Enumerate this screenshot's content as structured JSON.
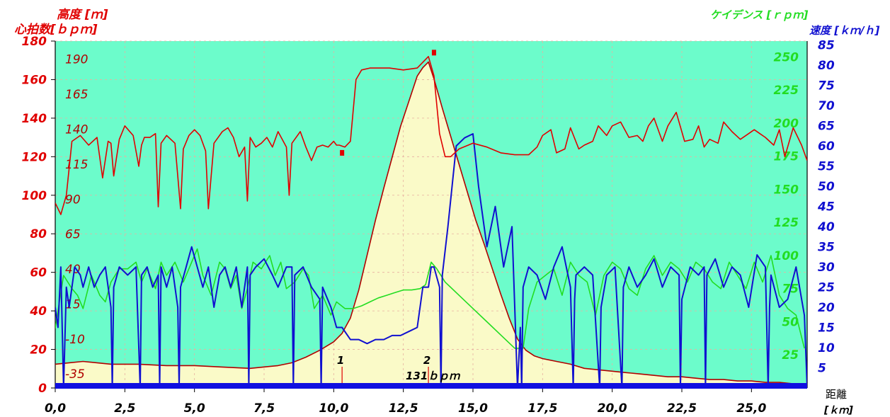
{
  "chart_data": {
    "type": "line",
    "axes": {
      "heart_rate": {
        "title": "心拍数[ｂｐｍ]",
        "color": "#e00000",
        "ticks": [
          "0",
          "20",
          "40",
          "60",
          "80",
          "100",
          "120",
          "140",
          "160",
          "180"
        ],
        "range": [
          0,
          180
        ]
      },
      "altitude": {
        "title": "高度 [ｍ]",
        "color": "#b00000",
        "ticks": [
          "-35",
          "-10",
          "15",
          "40",
          "65",
          "90",
          "115",
          "140",
          "165",
          "190"
        ],
        "range": [
          -45,
          203
        ]
      },
      "cadence": {
        "title": "ケイデンス [ｒｐｍ]",
        "color": "#22dd22",
        "ticks": [
          "25",
          "50",
          "75",
          "100",
          "125",
          "150",
          "175",
          "200",
          "225",
          "250"
        ],
        "range": [
          0,
          262
        ]
      },
      "speed": {
        "title": "速度 [ｋｍ/ｈ]",
        "color": "#1010d0",
        "ticks": [
          "5",
          "10",
          "15",
          "20",
          "25",
          "30",
          "35",
          "40",
          "45",
          "50",
          "55",
          "60",
          "65",
          "70",
          "75",
          "80",
          "85"
        ],
        "range": [
          0,
          86
        ]
      },
      "distance": {
        "title": "距離",
        "unit": "[ｋｍ]",
        "ticks": [
          "0,0",
          "2,5",
          "5,0",
          "7,5",
          "10,0",
          "12,5",
          "15,0",
          "17,5",
          "20,0",
          "22,5",
          "25,0"
        ],
        "range": [
          0,
          27
        ]
      }
    },
    "markers": [
      {
        "label": "1",
        "x": 10.3
      },
      {
        "label": "2",
        "x": 13.4
      }
    ],
    "annotation": "131ｂｐｍ",
    "series": [
      {
        "key": "heart_rate",
        "color": "#e00000",
        "x": [
          0,
          0.2,
          0.4,
          0.6,
          0.9,
          1.2,
          1.5,
          1.7,
          1.9,
          2.0,
          2.1,
          2.3,
          2.5,
          2.8,
          3.0,
          3.1,
          3.2,
          3.4,
          3.6,
          3.7,
          3.8,
          4.0,
          4.3,
          4.5,
          4.6,
          4.8,
          5.0,
          5.2,
          5.4,
          5.5,
          5.7,
          6.0,
          6.2,
          6.4,
          6.6,
          6.8,
          6.9,
          7.0,
          7.2,
          7.4,
          7.6,
          7.8,
          8.0,
          8.3,
          8.4,
          8.5,
          8.8,
          9.0,
          9.2,
          9.4,
          9.6,
          9.8,
          10.0,
          10.1,
          10.2,
          10.4,
          10.6,
          10.8,
          11.0,
          11.3,
          11.6,
          12.0,
          12.5,
          13.0,
          13.4,
          13.6,
          13.8,
          14.0,
          14.2,
          14.5,
          15.0,
          15.5,
          16.0,
          16.5,
          17.0,
          17.3,
          17.5,
          17.8,
          18.0,
          18.3,
          18.5,
          18.8,
          19.0,
          19.3,
          19.5,
          19.8,
          20.0,
          20.3,
          20.6,
          20.9,
          21.1,
          21.3,
          21.5,
          21.8,
          22.0,
          22.3,
          22.6,
          22.9,
          23.1,
          23.3,
          23.5,
          23.8,
          24.0,
          24.3,
          24.6,
          24.9,
          25.1,
          25.3,
          25.5,
          25.8,
          26.0,
          26.2,
          26.5,
          26.8,
          27.0
        ],
        "y": [
          96,
          90,
          100,
          128,
          131,
          126,
          130,
          109,
          128,
          127,
          110,
          129,
          136,
          131,
          115,
          126,
          130,
          130,
          132,
          94,
          127,
          131,
          127,
          93,
          124,
          131,
          134,
          131,
          123,
          93,
          127,
          133,
          135,
          130,
          120,
          125,
          97,
          130,
          125,
          127,
          130,
          125,
          133,
          125,
          100,
          127,
          133,
          125,
          118,
          125,
          126,
          125,
          128,
          126,
          126,
          125,
          128,
          160,
          165,
          166,
          166,
          166,
          165,
          166,
          172,
          162,
          132,
          120,
          120,
          124,
          127,
          125,
          122,
          121,
          121,
          125,
          131,
          134,
          122,
          124,
          135,
          124,
          126,
          128,
          136,
          131,
          136,
          138,
          130,
          131,
          128,
          136,
          140,
          128,
          136,
          143,
          128,
          129,
          136,
          125,
          129,
          127,
          138,
          133,
          129,
          132,
          134,
          132,
          130,
          126,
          134,
          120,
          135,
          126,
          118
        ]
      },
      {
        "key": "altitude",
        "color": "#b00000",
        "x": [
          0,
          0.5,
          1.0,
          2.0,
          3.0,
          4.0,
          5.0,
          6.0,
          7.0,
          8.0,
          8.5,
          9.0,
          9.5,
          10.0,
          10.3,
          10.6,
          10.9,
          11.2,
          11.5,
          11.8,
          12.1,
          12.4,
          12.7,
          13.0,
          13.2,
          13.4,
          13.6,
          13.9,
          14.2,
          14.5,
          14.8,
          15.1,
          15.4,
          15.7,
          16.0,
          16.3,
          16.6,
          16.9,
          17.2,
          17.5,
          18.0,
          18.5,
          19.0,
          19.5,
          20.0,
          20.5,
          21.0,
          21.5,
          22.0,
          22.5,
          23.0,
          23.5,
          24.0,
          24.5,
          25.0,
          25.5,
          26.0,
          26.5,
          27.0
        ],
        "y": [
          -28,
          -27,
          -26,
          -28,
          -28,
          -29,
          -29,
          -30,
          -31,
          -29,
          -27,
          -23,
          -18,
          -12,
          -6,
          5,
          25,
          50,
          75,
          98,
          120,
          142,
          160,
          178,
          184,
          188,
          176,
          155,
          135,
          115,
          95,
          75,
          58,
          40,
          22,
          5,
          -10,
          -18,
          -22,
          -24,
          -26,
          -28,
          -31,
          -32,
          -33,
          -34,
          -35,
          -36,
          -37,
          -37,
          -38,
          -39,
          -39,
          -40,
          -40,
          -41,
          -41,
          -42,
          -42
        ]
      },
      {
        "key": "cadence",
        "color": "#22dd22",
        "x": [
          0,
          0.3,
          0.6,
          0.8,
          1.0,
          1.3,
          1.6,
          1.8,
          2.0,
          2.3,
          2.6,
          2.9,
          3.1,
          3.3,
          3.6,
          3.8,
          4.0,
          4.3,
          4.6,
          4.9,
          5.1,
          5.3,
          5.6,
          5.9,
          6.1,
          6.3,
          6.5,
          6.7,
          6.9,
          7.1,
          7.4,
          7.7,
          7.9,
          8.1,
          8.3,
          8.6,
          8.9,
          9.1,
          9.3,
          9.6,
          9.9,
          10.1,
          10.4,
          10.7,
          11.0,
          11.3,
          11.6,
          11.9,
          12.2,
          12.5,
          12.8,
          13.1,
          13.3,
          13.5,
          13.7,
          14.0,
          14.5,
          15.0,
          15.5,
          16.0,
          16.5,
          16.8,
          17.0,
          17.3,
          17.6,
          17.9,
          18.2,
          18.5,
          18.8,
          19.1,
          19.4,
          19.7,
          20.0,
          20.3,
          20.6,
          20.9,
          21.2,
          21.5,
          21.8,
          22.1,
          22.4,
          22.7,
          23.0,
          23.3,
          23.6,
          23.9,
          24.2,
          24.5,
          24.8,
          25.1,
          25.4,
          25.7,
          26.0,
          26.3,
          26.6,
          26.9
        ],
        "y": [
          45,
          85,
          75,
          70,
          60,
          85,
          70,
          65,
          80,
          90,
          90,
          95,
          80,
          90,
          75,
          95,
          85,
          95,
          80,
          95,
          105,
          85,
          70,
          95,
          90,
          75,
          85,
          60,
          75,
          95,
          90,
          100,
          85,
          95,
          75,
          80,
          90,
          85,
          60,
          70,
          55,
          65,
          60,
          60,
          62,
          65,
          68,
          70,
          72,
          74,
          74,
          75,
          78,
          95,
          90,
          80,
          70,
          60,
          50,
          40,
          30,
          30,
          60,
          80,
          85,
          90,
          70,
          95,
          85,
          80,
          55,
          85,
          95,
          90,
          75,
          70,
          90,
          100,
          85,
          95,
          90,
          80,
          95,
          90,
          80,
          75,
          95,
          85,
          75,
          95,
          80,
          100,
          70,
          60,
          55,
          30
        ]
      },
      {
        "key": "speed",
        "color": "#1010d0",
        "x": [
          0,
          0.1,
          0.2,
          0.3,
          0.4,
          0.5,
          0.7,
          0.9,
          1.0,
          1.2,
          1.4,
          1.6,
          1.8,
          2.0,
          2.05,
          2.1,
          2.3,
          2.6,
          2.9,
          3.05,
          3.1,
          3.3,
          3.5,
          3.7,
          3.75,
          3.8,
          4.0,
          4.2,
          4.4,
          4.45,
          4.5,
          4.7,
          4.9,
          5.1,
          5.3,
          5.5,
          5.7,
          5.9,
          6.1,
          6.3,
          6.5,
          6.7,
          6.9,
          6.95,
          7.0,
          7.2,
          7.5,
          7.8,
          8.0,
          8.3,
          8.5,
          8.55,
          8.6,
          8.9,
          9.2,
          9.5,
          9.55,
          9.6,
          9.9,
          10.1,
          10.3,
          10.6,
          10.9,
          11.2,
          11.5,
          11.8,
          12.1,
          12.4,
          12.7,
          13.0,
          13.2,
          13.4,
          13.5,
          13.6,
          13.8,
          13.85,
          13.9,
          14.1,
          14.4,
          14.7,
          15.0,
          15.2,
          15.5,
          15.8,
          16.1,
          16.4,
          16.6,
          16.7,
          16.75,
          16.8,
          17.0,
          17.3,
          17.6,
          17.9,
          18.2,
          18.5,
          18.6,
          18.65,
          18.7,
          19.0,
          19.3,
          19.55,
          19.6,
          19.8,
          20.1,
          20.35,
          20.4,
          20.6,
          20.9,
          21.2,
          21.5,
          21.8,
          22.1,
          22.4,
          22.45,
          22.5,
          22.8,
          23.1,
          23.3,
          23.35,
          23.4,
          23.7,
          24.0,
          24.3,
          24.6,
          24.9,
          25.2,
          25.5,
          25.6,
          25.65,
          25.7,
          26.0,
          26.3,
          26.6,
          26.9,
          27.0
        ],
        "y": [
          20,
          15,
          30,
          0,
          25,
          20,
          30,
          28,
          25,
          30,
          25,
          28,
          30,
          20,
          0,
          25,
          30,
          28,
          30,
          0,
          28,
          30,
          25,
          28,
          0,
          30,
          25,
          30,
          20,
          0,
          25,
          30,
          35,
          30,
          25,
          30,
          20,
          28,
          30,
          25,
          30,
          20,
          30,
          0,
          28,
          30,
          32,
          28,
          25,
          30,
          30,
          0,
          28,
          30,
          25,
          22,
          0,
          25,
          20,
          15,
          15,
          12,
          12,
          11,
          12,
          12,
          13,
          13,
          14,
          15,
          25,
          25,
          30,
          30,
          25,
          0,
          28,
          40,
          60,
          62,
          63,
          50,
          35,
          45,
          30,
          40,
          0,
          15,
          0,
          25,
          30,
          28,
          22,
          30,
          35,
          25,
          0,
          22,
          28,
          30,
          28,
          0,
          20,
          28,
          30,
          0,
          25,
          30,
          25,
          28,
          32,
          25,
          30,
          28,
          0,
          22,
          30,
          28,
          30,
          0,
          28,
          32,
          25,
          30,
          28,
          20,
          33,
          30,
          0,
          20,
          28,
          20,
          22,
          30,
          18,
          0
        ]
      }
    ]
  }
}
